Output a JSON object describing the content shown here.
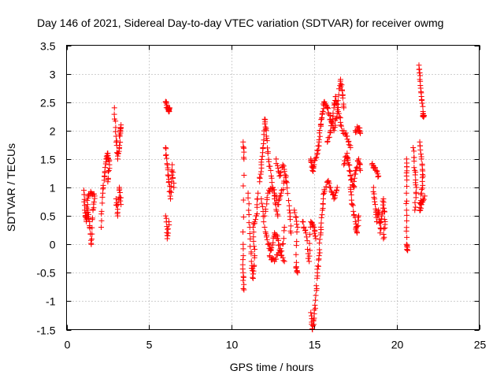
{
  "chart_data": {
    "type": "scatter",
    "title": "Day 146 of 2021, Sidereal Day-to-day VTEC variation (SDTVAR) for receiver owmg",
    "xlabel": "GPS time / hours",
    "ylabel": "SDTVAR / TECUs",
    "xlim": [
      0,
      25
    ],
    "ylim": [
      -1.5,
      3.5
    ],
    "x_ticks": [
      "0",
      "5",
      "10",
      "15",
      "20",
      "25"
    ],
    "y_ticks": [
      "-1.5",
      "-1",
      "-0.5",
      "0",
      "0.5",
      "1",
      "1.5",
      "2",
      "2.5",
      "3",
      "3.5"
    ],
    "grid": true,
    "marker": "+",
    "color": "#ff0000",
    "series": [
      {
        "name": "SDTVAR",
        "tracks": [
          [
            [
              1.05,
              0.95
            ],
            [
              1.1,
              0.6
            ],
            [
              1.2,
              0.4
            ],
            [
              1.3,
              0.6
            ],
            [
              1.4,
              0.3
            ],
            [
              1.5,
              0.0
            ],
            [
              1.6,
              0.6
            ],
            [
              1.7,
              0.85
            ],
            [
              1.5,
              0.9
            ],
            [
              1.3,
              0.85
            ],
            [
              1.2,
              0.55
            ]
          ],
          [
            [
              2.1,
              0.3
            ],
            [
              2.2,
              0.9
            ],
            [
              2.3,
              1.2
            ],
            [
              2.4,
              1.5
            ],
            [
              2.5,
              1.6
            ],
            [
              2.6,
              1.4
            ],
            [
              2.5,
              1.1
            ]
          ],
          [
            [
              2.9,
              2.4
            ],
            [
              3.0,
              1.9
            ],
            [
              3.1,
              1.5
            ],
            [
              3.2,
              1.7
            ],
            [
              3.3,
              2.1
            ],
            [
              3.2,
              1.9
            ]
          ],
          [
            [
              3.0,
              0.8
            ],
            [
              3.1,
              0.5
            ],
            [
              3.2,
              1.0
            ],
            [
              3.3,
              0.7
            ]
          ],
          [
            [
              6.0,
              2.5
            ],
            [
              6.1,
              2.4
            ],
            [
              6.2,
              2.35
            ],
            [
              6.25,
              2.4
            ]
          ],
          [
            [
              6.0,
              1.7
            ],
            [
              6.1,
              1.4
            ],
            [
              6.2,
              1.1
            ],
            [
              6.3,
              0.8
            ],
            [
              6.4,
              1.4
            ],
            [
              6.5,
              1.0
            ]
          ],
          [
            [
              6.0,
              0.5
            ],
            [
              6.1,
              0.1
            ],
            [
              6.2,
              0.4
            ]
          ],
          [
            [
              10.7,
              1.8
            ],
            [
              10.75,
              1.5
            ],
            [
              10.7,
              0.0
            ],
            [
              10.7,
              -0.5
            ],
            [
              10.75,
              -0.8
            ]
          ],
          [
            [
              11.0,
              0.9
            ],
            [
              11.1,
              0.3
            ],
            [
              11.2,
              -0.3
            ],
            [
              11.3,
              -0.6
            ],
            [
              11.4,
              -0.2
            ],
            [
              11.3,
              0.3
            ],
            [
              11.5,
              0.5
            ],
            [
              11.6,
              0.9
            ]
          ],
          [
            [
              11.7,
              1.1
            ],
            [
              11.8,
              1.4
            ],
            [
              11.9,
              1.7
            ],
            [
              12.0,
              2.2
            ],
            [
              12.1,
              2.0
            ],
            [
              12.2,
              1.6
            ],
            [
              12.4,
              1.2
            ],
            [
              12.6,
              0.8
            ],
            [
              12.8,
              0.5
            ]
          ],
          [
            [
              11.8,
              0.8
            ],
            [
              12.0,
              0.3
            ],
            [
              12.2,
              0.0
            ],
            [
              12.4,
              -0.1
            ],
            [
              12.6,
              0.2
            ],
            [
              12.8,
              0.1
            ],
            [
              13.0,
              -0.2
            ],
            [
              13.2,
              0.3
            ]
          ],
          [
            [
              12.0,
              0.5
            ],
            [
              12.2,
              0.9
            ],
            [
              12.5,
              1.0
            ],
            [
              12.8,
              0.7
            ],
            [
              13.0,
              0.9
            ],
            [
              13.3,
              1.2
            ],
            [
              13.5,
              0.6
            ],
            [
              13.6,
              0.2
            ]
          ],
          [
            [
              12.7,
              1.5
            ],
            [
              12.9,
              1.2
            ],
            [
              13.1,
              1.4
            ],
            [
              13.3,
              1.1
            ]
          ],
          [
            [
              12.3,
              -0.2
            ],
            [
              12.6,
              -0.3
            ],
            [
              12.9,
              -0.1
            ],
            [
              13.2,
              -0.3
            ]
          ],
          [
            [
              13.8,
              0.6
            ],
            [
              14.0,
              0.3
            ],
            [
              13.9,
              -0.4
            ],
            [
              14.0,
              -0.5
            ]
          ],
          [
            [
              14.3,
              0.4
            ],
            [
              14.5,
              0.2
            ],
            [
              14.7,
              -0.3
            ],
            [
              14.8,
              0.4
            ],
            [
              15.0,
              0.3
            ],
            [
              15.1,
              0.1
            ]
          ],
          [
            [
              14.8,
              -1.2
            ],
            [
              14.9,
              -1.5
            ],
            [
              15.0,
              -1.3
            ],
            [
              15.1,
              -0.9
            ],
            [
              15.2,
              -0.5
            ],
            [
              15.3,
              -0.2
            ],
            [
              15.4,
              0.2
            ],
            [
              15.5,
              0.6
            ],
            [
              15.6,
              0.9
            ],
            [
              15.8,
              1.1
            ],
            [
              16.0,
              1.0
            ],
            [
              16.2,
              0.8
            ],
            [
              16.4,
              1.0
            ]
          ],
          [
            [
              14.8,
              1.5
            ],
            [
              14.9,
              1.3
            ],
            [
              15.0,
              1.4
            ],
            [
              15.2,
              1.6
            ],
            [
              15.3,
              1.8
            ],
            [
              15.4,
              2.1
            ],
            [
              15.5,
              2.3
            ],
            [
              15.6,
              2.5
            ],
            [
              15.8,
              2.4
            ],
            [
              16.0,
              2.2
            ],
            [
              16.2,
              2.0
            ],
            [
              16.4,
              2.3
            ],
            [
              16.6,
              2.9
            ],
            [
              16.7,
              2.7
            ],
            [
              16.8,
              2.4
            ]
          ],
          [
            [
              15.8,
              1.8
            ],
            [
              16.0,
              2.0
            ],
            [
              16.2,
              2.4
            ],
            [
              16.3,
              2.6
            ],
            [
              16.5,
              2.3
            ],
            [
              16.7,
              2.0
            ],
            [
              17.0,
              1.9
            ],
            [
              17.2,
              1.7
            ]
          ],
          [
            [
              16.8,
              1.4
            ],
            [
              17.0,
              1.6
            ],
            [
              17.1,
              1.4
            ],
            [
              17.2,
              1.2
            ],
            [
              17.4,
              1.0
            ],
            [
              17.5,
              1.3
            ],
            [
              17.7,
              1.5
            ],
            [
              17.8,
              1.3
            ]
          ],
          [
            [
              17.2,
              1.0
            ],
            [
              17.3,
              0.7
            ],
            [
              17.5,
              0.4
            ],
            [
              17.6,
              0.2
            ],
            [
              17.7,
              0.5
            ]
          ],
          [
            [
              17.5,
              2.0
            ],
            [
              17.7,
              2.05
            ],
            [
              17.8,
              1.95
            ]
          ],
          [
            [
              18.6,
              1.0
            ],
            [
              18.7,
              0.7
            ],
            [
              18.8,
              0.4
            ],
            [
              18.9,
              0.6
            ],
            [
              19.0,
              0.2
            ],
            [
              19.1,
              0.5
            ],
            [
              19.2,
              0.8
            ],
            [
              19.3,
              0.4
            ],
            [
              19.2,
              0.1
            ]
          ],
          [
            [
              18.5,
              1.4
            ],
            [
              18.7,
              1.35
            ],
            [
              18.9,
              1.2
            ]
          ],
          [
            [
              20.6,
              1.5
            ],
            [
              20.6,
              1.2
            ],
            [
              20.6,
              0.6
            ],
            [
              20.6,
              0.0
            ],
            [
              20.65,
              -0.1
            ]
          ],
          [
            [
              21.0,
              1.7
            ],
            [
              21.1,
              1.3
            ],
            [
              21.2,
              1.0
            ],
            [
              21.1,
              0.6
            ]
          ],
          [
            [
              21.35,
              3.15
            ],
            [
              21.4,
              2.9
            ],
            [
              21.5,
              2.6
            ],
            [
              21.6,
              2.3
            ],
            [
              21.65,
              2.25
            ]
          ],
          [
            [
              21.4,
              1.8
            ],
            [
              21.5,
              1.5
            ],
            [
              21.6,
              1.2
            ],
            [
              21.5,
              0.9
            ],
            [
              21.4,
              0.6
            ],
            [
              21.5,
              0.7
            ],
            [
              21.7,
              0.85
            ]
          ]
        ]
      }
    ]
  }
}
